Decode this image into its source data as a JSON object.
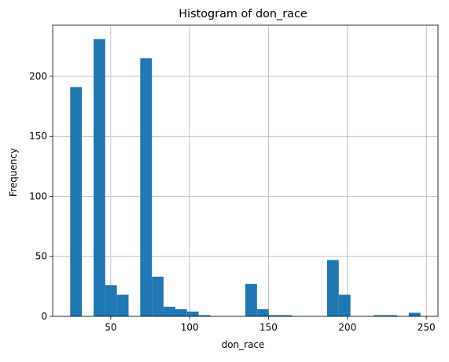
{
  "chart_data": {
    "type": "bar",
    "title": "Histogram of don_race",
    "xlabel": "don_race",
    "ylabel": "Frequency",
    "xlim": [
      13.2,
      257.4
    ],
    "ylim": [
      0,
      242.6
    ],
    "xticks": [
      50,
      100,
      150,
      200,
      250
    ],
    "yticks": [
      0,
      50,
      100,
      150,
      200
    ],
    "grid": true,
    "bar_color": "#1f77b4",
    "bins": [
      {
        "x0": 24.3,
        "x1": 31.7,
        "value": 191
      },
      {
        "x0": 31.7,
        "x1": 39.1,
        "value": 0
      },
      {
        "x0": 39.1,
        "x1": 46.5,
        "value": 231
      },
      {
        "x0": 46.5,
        "x1": 53.9,
        "value": 26
      },
      {
        "x0": 53.9,
        "x1": 61.3,
        "value": 18
      },
      {
        "x0": 61.3,
        "x1": 68.7,
        "value": 0
      },
      {
        "x0": 68.7,
        "x1": 76.1,
        "value": 215
      },
      {
        "x0": 76.1,
        "x1": 83.5,
        "value": 33
      },
      {
        "x0": 83.5,
        "x1": 90.9,
        "value": 8
      },
      {
        "x0": 90.9,
        "x1": 98.3,
        "value": 6
      },
      {
        "x0": 98.3,
        "x1": 105.7,
        "value": 4
      },
      {
        "x0": 105.7,
        "x1": 113.1,
        "value": 1
      },
      {
        "x0": 113.1,
        "x1": 120.5,
        "value": 0
      },
      {
        "x0": 120.5,
        "x1": 127.9,
        "value": 0
      },
      {
        "x0": 127.9,
        "x1": 135.3,
        "value": 0
      },
      {
        "x0": 135.3,
        "x1": 142.7,
        "value": 27
      },
      {
        "x0": 142.7,
        "x1": 150.1,
        "value": 6
      },
      {
        "x0": 150.1,
        "x1": 157.5,
        "value": 1
      },
      {
        "x0": 157.5,
        "x1": 164.9,
        "value": 1
      },
      {
        "x0": 164.9,
        "x1": 172.3,
        "value": 0
      },
      {
        "x0": 172.3,
        "x1": 179.7,
        "value": 0
      },
      {
        "x0": 179.7,
        "x1": 187.1,
        "value": 0
      },
      {
        "x0": 187.1,
        "x1": 194.5,
        "value": 47
      },
      {
        "x0": 194.5,
        "x1": 201.9,
        "value": 18
      },
      {
        "x0": 201.9,
        "x1": 209.3,
        "value": 0
      },
      {
        "x0": 209.3,
        "x1": 216.7,
        "value": 0
      },
      {
        "x0": 216.7,
        "x1": 224.1,
        "value": 1
      },
      {
        "x0": 224.1,
        "x1": 231.5,
        "value": 1
      },
      {
        "x0": 231.5,
        "x1": 238.9,
        "value": 0
      },
      {
        "x0": 238.9,
        "x1": 246.3,
        "value": 3
      }
    ]
  }
}
